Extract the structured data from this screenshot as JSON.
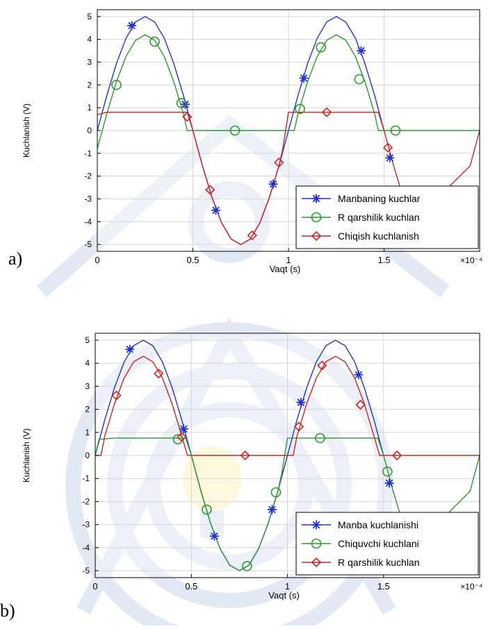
{
  "charts": [
    {
      "panel_label": "a)",
      "chart_data": {
        "type": "line",
        "title": "",
        "xlabel": "Vaqt (s)",
        "ylabel": "Kuchlanish (V)",
        "x_multiplier": "×10⁻⁴",
        "xlim": [
          0,
          2.0
        ],
        "ylim": [
          -5.3,
          5.3
        ],
        "x_ticks": [
          0,
          0.5,
          1,
          1.5
        ],
        "x_tick_labels": [
          "0",
          "0.5",
          "1",
          "1.5"
        ],
        "y_ticks": [
          -5,
          -4,
          -3,
          -2,
          -1,
          0,
          1,
          2,
          3,
          4,
          5
        ],
        "y_tick_labels": [
          "-5",
          "-4",
          "-3",
          "-2",
          "-1",
          "0",
          "1",
          "2",
          "3",
          "4",
          "5"
        ],
        "grid": true,
        "legend_position": "bottom-right",
        "series": [
          {
            "name": "Manbaning kuchlar",
            "color": "#2233cc",
            "marker": "asterisk",
            "x": [
              0,
              0.05,
              0.1,
              0.15,
              0.2,
              0.25,
              0.3,
              0.35,
              0.4,
              0.45,
              0.5,
              0.55,
              0.6,
              0.65,
              0.7,
              0.75,
              0.8,
              0.85,
              0.9,
              0.95,
              1.0,
              1.05,
              1.1,
              1.15,
              1.2,
              1.25,
              1.3,
              1.35,
              1.4,
              1.45,
              1.5
            ],
            "y": [
              0,
              1.55,
              2.94,
              4.05,
              4.76,
              5.0,
              4.76,
              4.05,
              2.94,
              1.55,
              0,
              -1.55,
              -2.94,
              -4.05,
              -4.76,
              -5.0,
              -4.76,
              -4.05,
              -2.94,
              -1.55,
              0,
              1.55,
              2.94,
              4.05,
              4.76,
              5.0,
              4.76,
              4.05,
              2.94,
              1.55,
              0
            ],
            "marker_x": [
              0.18,
              0.46,
              0.62,
              0.92,
              1.08,
              1.38,
              1.53
            ],
            "marker_y": [
              4.6,
              1.15,
              -3.5,
              -2.35,
              2.3,
              3.5,
              -1.2
            ]
          },
          {
            "name": "R qarshilik kuchlan",
            "color": "#2a9a2a",
            "marker": "circle",
            "x": [
              0,
              0.05,
              0.1,
              0.15,
              0.2,
              0.25,
              0.3,
              0.35,
              0.4,
              0.45,
              0.47,
              0.5,
              1.0,
              1.03,
              1.05,
              1.1,
              1.15,
              1.2,
              1.25,
              1.3,
              1.35,
              1.4,
              1.45,
              1.47,
              1.5,
              2.0
            ],
            "y": [
              -0.8,
              0.75,
              2.14,
              3.25,
              3.96,
              4.2,
              3.96,
              3.25,
              2.14,
              0.75,
              0,
              0,
              0,
              0,
              0.75,
              2.14,
              3.25,
              3.96,
              4.2,
              3.96,
              3.25,
              2.14,
              0.75,
              0,
              0,
              0
            ],
            "marker_x": [
              0.1,
              0.3,
              0.44,
              0.72,
              1.06,
              1.17,
              1.37,
              1.56
            ],
            "marker_y": [
              2.0,
              3.9,
              1.2,
              0,
              0.95,
              3.65,
              2.25,
              0
            ]
          },
          {
            "name": "Chiqish kuchlanish",
            "color": "#cc2222",
            "marker": "diamond",
            "x": [
              0,
              0.05,
              0.1,
              0.2,
              0.3,
              0.4,
              0.47,
              0.5,
              0.55,
              0.6,
              0.65,
              0.7,
              0.75,
              0.8,
              0.85,
              0.9,
              0.95,
              0.97,
              1.0,
              1.05,
              1.1,
              1.2,
              1.3,
              1.4,
              1.47,
              1.5,
              1.55,
              1.6,
              1.65,
              1.95,
              2.0
            ],
            "y": [
              0.7,
              0.8,
              0.8,
              0.8,
              0.8,
              0.8,
              0.8,
              0,
              -1.55,
              -2.94,
              -4.05,
              -4.76,
              -5.0,
              -4.76,
              -4.05,
              -2.94,
              -1.55,
              -0.8,
              0.8,
              0.8,
              0.8,
              0.8,
              0.8,
              0.8,
              0.8,
              0,
              -1.55,
              -2.94,
              -4.05,
              -1.55,
              0
            ],
            "marker_x": [
              0.47,
              0.59,
              0.81,
              0.95,
              1.2,
              1.52
            ],
            "marker_y": [
              0.6,
              -2.6,
              -4.6,
              -1.4,
              0.8,
              -0.75
            ]
          }
        ]
      }
    },
    {
      "panel_label": "b)",
      "chart_data": {
        "type": "line",
        "title": "",
        "xlabel": "Vaqt (s)",
        "ylabel": "Kuchlanish (V)",
        "x_multiplier": "×10⁻⁴",
        "xlim": [
          0,
          2.0
        ],
        "ylim": [
          -5.3,
          5.3
        ],
        "x_ticks": [
          0,
          0.5,
          1,
          1.5
        ],
        "x_tick_labels": [
          "0",
          "0.5",
          "1",
          "1.5"
        ],
        "y_ticks": [
          -5,
          -4,
          -3,
          -2,
          -1,
          0,
          1,
          2,
          3,
          4,
          5
        ],
        "y_tick_labels": [
          "-5",
          "-4",
          "-3",
          "-2",
          "-1",
          "0",
          "1",
          "2",
          "3",
          "4",
          "5"
        ],
        "grid": true,
        "legend_position": "bottom-right",
        "series": [
          {
            "name": "Manba kuchlanishi",
            "color": "#2233cc",
            "marker": "asterisk",
            "x": [
              0,
              0.05,
              0.1,
              0.15,
              0.2,
              0.25,
              0.3,
              0.35,
              0.4,
              0.45,
              0.5,
              0.55,
              0.6,
              0.65,
              0.7,
              0.75,
              0.8,
              0.85,
              0.9,
              0.95,
              1.0,
              1.05,
              1.1,
              1.15,
              1.2,
              1.25,
              1.3,
              1.35,
              1.4,
              1.45,
              1.5
            ],
            "y": [
              0,
              1.55,
              2.94,
              4.05,
              4.76,
              5.0,
              4.76,
              4.05,
              2.94,
              1.55,
              0,
              -1.55,
              -2.94,
              -4.05,
              -4.76,
              -5.0,
              -4.76,
              -4.05,
              -2.94,
              -1.55,
              0,
              1.55,
              2.94,
              4.05,
              4.76,
              5.0,
              4.76,
              4.05,
              2.94,
              1.55,
              0
            ],
            "marker_x": [
              0.18,
              0.46,
              0.62,
              0.92,
              1.07,
              1.37,
              1.53
            ],
            "marker_y": [
              4.6,
              1.15,
              -3.5,
              -2.35,
              2.3,
              3.5,
              -1.2
            ]
          },
          {
            "name": "Chiquvchi kuchlani",
            "color": "#2a9a2a",
            "marker": "circle",
            "x": [
              0,
              0.02,
              0.1,
              0.2,
              0.3,
              0.4,
              0.47,
              0.5,
              0.55,
              0.6,
              0.65,
              0.7,
              0.75,
              0.8,
              0.85,
              0.9,
              0.95,
              0.97,
              1.0,
              1.05,
              1.1,
              1.2,
              1.3,
              1.4,
              1.47,
              1.5,
              1.55,
              1.6,
              1.65,
              1.95,
              2.0
            ],
            "y": [
              0,
              0.7,
              0.75,
              0.75,
              0.75,
              0.75,
              0.75,
              0,
              -1.55,
              -2.94,
              -4.05,
              -4.76,
              -5.0,
              -4.76,
              -4.05,
              -2.94,
              -1.55,
              -0.8,
              0.75,
              0.75,
              0.75,
              0.75,
              0.75,
              0.75,
              0.75,
              0,
              -1.55,
              -2.94,
              -4.05,
              -1.55,
              0
            ],
            "marker_x": [
              0.43,
              0.58,
              0.79,
              0.94,
              1.17,
              1.52
            ],
            "marker_y": [
              0.7,
              -2.35,
              -4.8,
              -1.6,
              0.75,
              -0.7
            ]
          },
          {
            "name": "R qarshilik kuchlan",
            "color": "#cc2222",
            "marker": "diamond",
            "x": [
              0,
              0.03,
              0.05,
              0.1,
              0.15,
              0.2,
              0.25,
              0.3,
              0.35,
              0.4,
              0.45,
              0.48,
              0.5,
              1.0,
              1.03,
              1.05,
              1.1,
              1.15,
              1.2,
              1.25,
              1.3,
              1.35,
              1.4,
              1.45,
              1.48,
              1.5,
              2.0
            ],
            "y": [
              0,
              0,
              0.85,
              2.24,
              3.35,
              4.06,
              4.3,
              4.06,
              3.35,
              2.24,
              0.85,
              0,
              0,
              0,
              0,
              0.85,
              2.24,
              3.35,
              4.06,
              4.3,
              4.06,
              3.35,
              2.24,
              0.85,
              0,
              0,
              0
            ],
            "marker_x": [
              0.11,
              0.33,
              0.45,
              0.78,
              1.06,
              1.18,
              1.38,
              1.57
            ],
            "marker_y": [
              2.6,
              3.55,
              0.8,
              0,
              1.25,
              3.9,
              2.2,
              0
            ]
          }
        ]
      }
    }
  ]
}
